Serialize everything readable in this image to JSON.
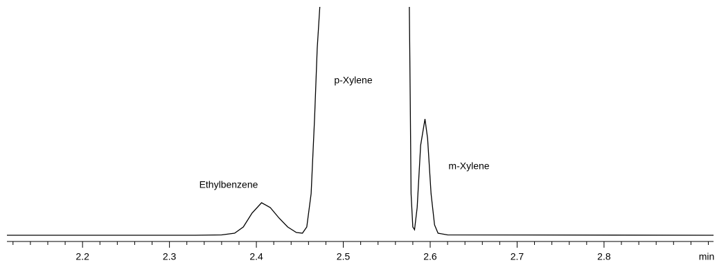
{
  "chart_data": {
    "type": "line",
    "x_label": "min",
    "xlim": [
      2.113,
      2.926
    ],
    "ylim": [
      0,
      330
    ],
    "xticks": [
      2.2,
      2.3,
      2.4,
      2.5,
      2.6,
      2.7,
      2.8
    ],
    "xminor_ticks": [
      2.12,
      2.14,
      2.16,
      2.18,
      2.22,
      2.24,
      2.26,
      2.28,
      2.32,
      2.34,
      2.36,
      2.38,
      2.42,
      2.44,
      2.46,
      2.48,
      2.52,
      2.54,
      2.56,
      2.58,
      2.62,
      2.64,
      2.66,
      2.68,
      2.72,
      2.74,
      2.76,
      2.78,
      2.82,
      2.84,
      2.86,
      2.88,
      2.9,
      2.92
    ],
    "series": [
      {
        "color": "#000000",
        "x": [
          2.113,
          2.33,
          2.36,
          2.375,
          2.385,
          2.395,
          2.406,
          2.416,
          2.426,
          2.436,
          2.446,
          2.453,
          2.458,
          2.463,
          2.467,
          2.47,
          2.473,
          null,
          2.576,
          2.577,
          2.578,
          2.58,
          2.582,
          2.585,
          2.589,
          2.594,
          2.597,
          2.601,
          2.605,
          2.609,
          2.62,
          2.926
        ],
        "values": [
          0,
          0,
          0.5,
          3,
          12,
          32,
          47,
          40,
          25,
          12,
          4,
          3,
          12,
          60,
          170,
          270,
          330,
          null,
          330,
          200,
          60,
          12,
          8,
          40,
          130,
          168,
          140,
          60,
          15,
          3,
          0.5,
          0
        ]
      }
    ],
    "annotations": [
      "Ethylbenzene",
      "p-Xylene",
      "m-Xylene"
    ]
  }
}
